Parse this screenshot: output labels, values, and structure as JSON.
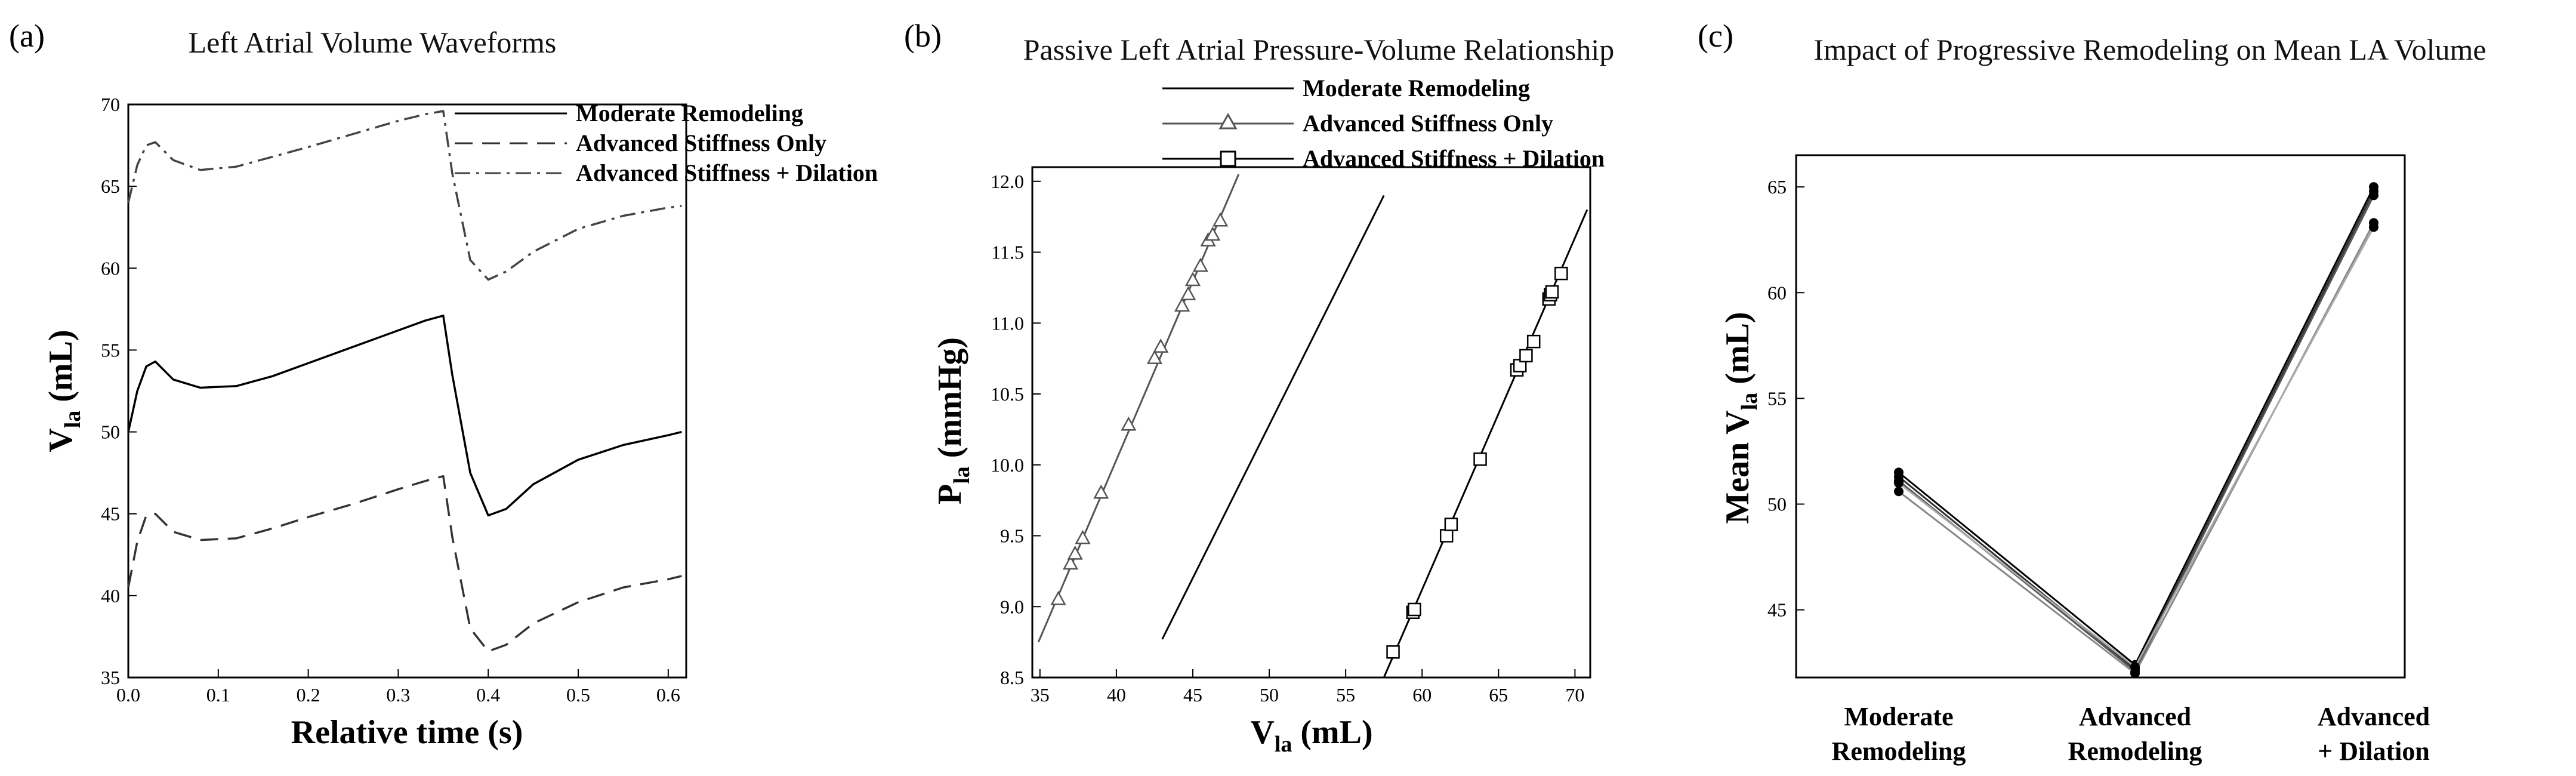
{
  "chart_data": [
    {
      "panel": "(a)",
      "type": "line",
      "title": "Left Atrial Volume Waveforms",
      "xlabel": "Relative time (s)",
      "ylabel_main": "V",
      "ylabel_sub": "la",
      "ylabel_unit": " (mL)",
      "xlim": [
        0.0,
        0.62
      ],
      "ylim": [
        35,
        70
      ],
      "x_ticks": [
        "0.0",
        "0.1",
        "0.2",
        "0.3",
        "0.4",
        "0.5",
        "0.6"
      ],
      "y_ticks": [
        "35",
        "40",
        "45",
        "50",
        "55",
        "60",
        "65",
        "70"
      ],
      "legend_position": "top-right",
      "series": [
        {
          "name": "Moderate Remodeling",
          "style": "solid",
          "color": "#000000",
          "x": [
            0,
            0.01,
            0.02,
            0.03,
            0.05,
            0.08,
            0.12,
            0.16,
            0.2,
            0.25,
            0.3,
            0.33,
            0.35,
            0.36,
            0.38,
            0.4,
            0.42,
            0.45,
            0.5,
            0.55,
            0.6,
            0.615
          ],
          "y": [
            50,
            52.5,
            54,
            54.3,
            53.2,
            52.7,
            52.8,
            53.4,
            54.2,
            55.2,
            56.2,
            56.8,
            57.1,
            53.5,
            47.5,
            44.9,
            45.3,
            46.8,
            48.3,
            49.2,
            49.8,
            50.0
          ]
        },
        {
          "name": "Advanced Stiffness Only",
          "style": "dashed",
          "color": "#333333",
          "x": [
            0,
            0.01,
            0.02,
            0.03,
            0.05,
            0.08,
            0.12,
            0.16,
            0.2,
            0.25,
            0.3,
            0.33,
            0.35,
            0.36,
            0.38,
            0.4,
            0.42,
            0.45,
            0.5,
            0.55,
            0.6,
            0.615
          ],
          "y": [
            40.5,
            43.3,
            44.9,
            45.0,
            43.9,
            43.4,
            43.5,
            44.1,
            44.8,
            45.6,
            46.5,
            47.0,
            47.3,
            43.6,
            38.0,
            36.6,
            37.0,
            38.3,
            39.6,
            40.5,
            41.0,
            41.2
          ]
        },
        {
          "name": "Advanced Stiffness + Dilation",
          "style": "dashdot",
          "color": "#444444",
          "x": [
            0,
            0.01,
            0.02,
            0.03,
            0.05,
            0.08,
            0.12,
            0.16,
            0.2,
            0.25,
            0.3,
            0.33,
            0.35,
            0.36,
            0.38,
            0.4,
            0.42,
            0.45,
            0.5,
            0.55,
            0.6,
            0.615
          ],
          "y": [
            64,
            66.3,
            67.5,
            67.7,
            66.6,
            66.0,
            66.2,
            66.8,
            67.4,
            68.2,
            69.0,
            69.4,
            69.6,
            65.8,
            60.5,
            59.3,
            59.8,
            61.0,
            62.4,
            63.2,
            63.7,
            63.8
          ]
        }
      ]
    },
    {
      "panel": "(b)",
      "type": "scatter",
      "title": "Passive Left Atrial Pressure-Volume Relationship",
      "xlabel_main": "V",
      "xlabel_sub": "la",
      "xlabel_unit": " (mL)",
      "ylabel_main": "P",
      "ylabel_sub": "la",
      "ylabel_unit": " (mmHg)",
      "xlim": [
        34.5,
        71
      ],
      "ylim": [
        8.5,
        12.1
      ],
      "x_ticks": [
        "35",
        "40",
        "45",
        "50",
        "55",
        "60",
        "65",
        "70"
      ],
      "y_ticks": [
        "8.5",
        "9.0",
        "9.5",
        "10.0",
        "10.5",
        "11.0",
        "11.5",
        "12.0"
      ],
      "legend_position": "top-center",
      "series": [
        {
          "name": "Moderate Remodeling",
          "marker": "none",
          "color": "#000000",
          "line": [
            [
              43.0,
              8.77
            ],
            [
              57.5,
              11.9
            ]
          ],
          "x": [],
          "y": []
        },
        {
          "name": "Advanced Stiffness Only",
          "marker": "triangle",
          "color": "#555555",
          "line": [
            [
              34.9,
              8.75
            ],
            [
              48.0,
              12.05
            ]
          ],
          "x": [
            36.2,
            37.0,
            37.3,
            37.8,
            39.0,
            40.8,
            42.5,
            42.9,
            44.3,
            44.7,
            45.0,
            45.5,
            46.0,
            46.3,
            46.8
          ],
          "y": [
            9.05,
            9.3,
            9.37,
            9.48,
            9.8,
            10.28,
            10.75,
            10.83,
            11.12,
            11.2,
            11.3,
            11.4,
            11.58,
            11.62,
            11.72
          ]
        },
        {
          "name": "Advanced Stiffness + Dilation",
          "marker": "square",
          "color": "#000000",
          "line": [
            [
              57.5,
              8.5
            ],
            [
              70.8,
              11.8
            ]
          ],
          "x": [
            58.1,
            59.4,
            59.5,
            61.6,
            61.9,
            63.8,
            66.2,
            66.4,
            66.8,
            67.3,
            68.3,
            68.4,
            68.5,
            69.1
          ],
          "y": [
            8.68,
            8.96,
            8.98,
            9.5,
            9.58,
            10.04,
            10.67,
            10.7,
            10.77,
            10.87,
            11.17,
            11.2,
            11.22,
            11.35
          ]
        }
      ]
    },
    {
      "panel": "(c)",
      "type": "line",
      "title": "Impact of Progressive Remodeling on Mean LA Volume",
      "ylabel_main": "Mean V",
      "ylabel_sub": "la",
      "ylabel_unit": " (mL)",
      "ylim": [
        41.8,
        66.5
      ],
      "y_ticks": [
        "45",
        "50",
        "55",
        "60",
        "65"
      ],
      "categories": [
        [
          "Moderate",
          "Remodeling"
        ],
        [
          "Advanced",
          "Remodeling"
        ],
        [
          "Advanced",
          "+ Dilation"
        ]
      ],
      "series": [
        {
          "color": "#000000",
          "values": [
            51.5,
            42.4,
            65.0
          ]
        },
        {
          "color": "#333333",
          "values": [
            51.3,
            42.2,
            64.8
          ]
        },
        {
          "color": "#555555",
          "values": [
            51.1,
            42.1,
            64.6
          ]
        },
        {
          "color": "#888888",
          "values": [
            50.6,
            42.0,
            63.3
          ]
        },
        {
          "color": "#aaaaaa",
          "values": [
            51.0,
            42.3,
            63.1
          ]
        }
      ]
    }
  ]
}
